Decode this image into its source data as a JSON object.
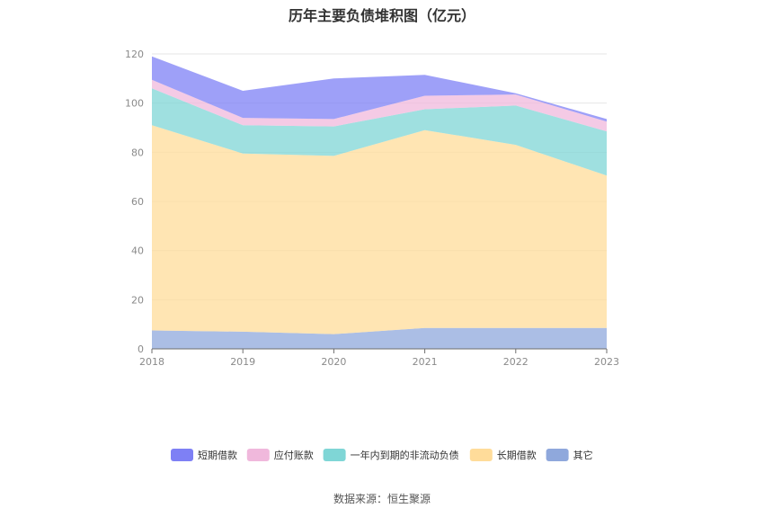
{
  "chart_data": {
    "type": "area",
    "stacked": true,
    "title": "历年主要负债堆积图（亿元）",
    "source": "数据来源：恒生聚源",
    "x": [
      "2018",
      "2019",
      "2020",
      "2021",
      "2022",
      "2023"
    ],
    "ylim": [
      0,
      120
    ],
    "yticks": [
      "0",
      "20",
      "40",
      "60",
      "80",
      "100",
      "120"
    ],
    "grid": true,
    "legend_position": "bottom",
    "series": [
      {
        "name": "其它",
        "color": "#8fa8dc",
        "values": [
          7.5,
          7,
          6,
          8.5,
          8.5,
          8.5
        ]
      },
      {
        "name": "长期借款",
        "color": "#ffdc9a",
        "values": [
          83.5,
          72.5,
          72.5,
          80.5,
          74.5,
          62
        ]
      },
      {
        "name": "一年内到期的非流动负债",
        "color": "#7fd6d6",
        "values": [
          15,
          11.5,
          12,
          8.5,
          16,
          18
        ]
      },
      {
        "name": "应付账款",
        "color": "#f0b8dc",
        "values": [
          3.5,
          3,
          3,
          5.5,
          4.5,
          4
        ]
      },
      {
        "name": "短期借款",
        "color": "#7e80f5",
        "values": [
          9.5,
          11,
          16.5,
          8.5,
          0.5,
          1
        ]
      }
    ],
    "legend_order": [
      "短期借款",
      "应付账款",
      "一年内到期的非流动负债",
      "长期借款",
      "其它"
    ]
  }
}
